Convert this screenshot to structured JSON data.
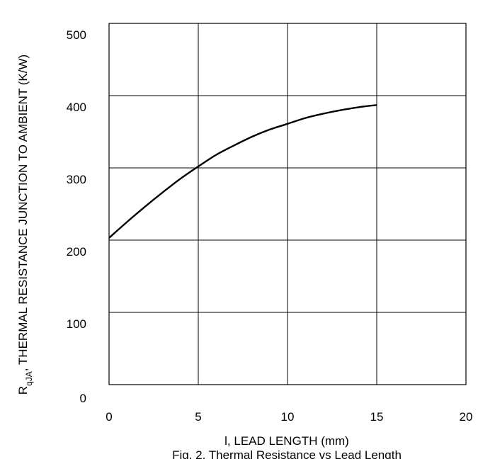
{
  "chart_data": {
    "type": "line",
    "title": "Fig. 2. Thermal Resistance vs Lead Length",
    "xlabel": "l, LEAD LENGTH (mm)",
    "ylabel_main": "R",
    "ylabel_sub": "qJA",
    "ylabel_rest": ", THERMAL RESISTANCE JUNCTION TO AMBIENT (K/W)",
    "xlim": [
      0,
      20
    ],
    "ylim": [
      0,
      500
    ],
    "x_ticks": [
      "0",
      "5",
      "10",
      "15",
      "20"
    ],
    "y_ticks": [
      "0",
      "100",
      "200",
      "300",
      "400",
      "500"
    ],
    "grid": true,
    "series": [
      {
        "x": [
          0,
          1,
          2,
          3,
          4,
          5,
          6,
          7,
          8,
          9,
          10,
          11,
          12,
          13,
          14,
          15
        ],
        "y": [
          203,
          225,
          246,
          266,
          285,
          302,
          318,
          331,
          343,
          353,
          361,
          369,
          375,
          380,
          384,
          387
        ],
        "color": "#000000"
      }
    ]
  }
}
